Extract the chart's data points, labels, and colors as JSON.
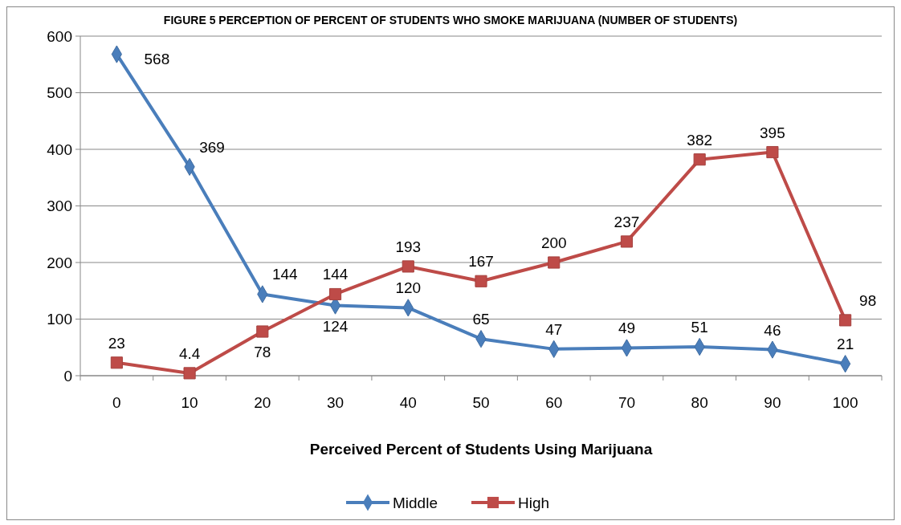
{
  "chart_data": {
    "type": "line",
    "title": "FIGURE 5 PERCEPTION OF PERCENT OF STUDENTS WHO SMOKE MARIJUANA (NUMBER OF STUDENTS)",
    "xlabel": "Perceived Percent of Students Using Marijuana",
    "categories": [
      "0",
      "10",
      "20",
      "30",
      "40",
      "50",
      "60",
      "70",
      "80",
      "90",
      "100"
    ],
    "series": [
      {
        "name": "Middle",
        "color": "#4a7ebb",
        "marker": "diamond",
        "values": [
          568,
          369,
          144,
          124,
          120,
          65,
          47,
          49,
          51,
          46,
          21
        ]
      },
      {
        "name": "High",
        "color": "#be4b48",
        "marker": "square",
        "values": [
          23,
          4.4,
          78,
          144,
          193,
          167,
          200,
          237,
          382,
          395,
          98
        ]
      }
    ],
    "ylim": [
      0,
      600
    ],
    "yticks": [
      0,
      100,
      200,
      300,
      400,
      500,
      600
    ],
    "grid": "y",
    "legend": "bottom",
    "data_labels": true
  }
}
